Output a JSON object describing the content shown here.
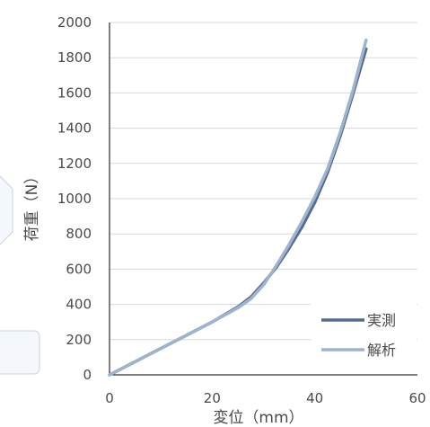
{
  "chart_data": {
    "type": "line",
    "title": "",
    "xlabel": "変位（mm）",
    "ylabel": "荷重（N）",
    "xlim": [
      0,
      60
    ],
    "ylim": [
      0,
      2000
    ],
    "xticks": [
      0,
      20,
      40,
      60
    ],
    "yticks": [
      0,
      200,
      400,
      600,
      800,
      1000,
      1200,
      1400,
      1600,
      1800,
      2000
    ],
    "grid": true,
    "legend_position": "bottom-right",
    "series": [
      {
        "name": "実測",
        "color": "#5a6a8c",
        "x": [
          0,
          5,
          10,
          15,
          20,
          25,
          27.5,
          30,
          32.5,
          35,
          37.5,
          40,
          42.5,
          45,
          47.5,
          50
        ],
        "y": [
          0,
          75,
          150,
          225,
          300,
          385,
          440,
          520,
          610,
          720,
          840,
          980,
          1150,
          1360,
          1600,
          1850
        ]
      },
      {
        "name": "解析",
        "color": "#9eb3cc",
        "x": [
          0,
          5,
          10,
          15,
          20,
          25,
          27.5,
          30,
          32.5,
          35,
          37.5,
          40,
          42.5,
          45,
          47.5,
          50
        ],
        "y": [
          0,
          75,
          150,
          225,
          300,
          380,
          430,
          510,
          620,
          740,
          870,
          1010,
          1170,
          1380,
          1620,
          1900
        ]
      }
    ]
  }
}
